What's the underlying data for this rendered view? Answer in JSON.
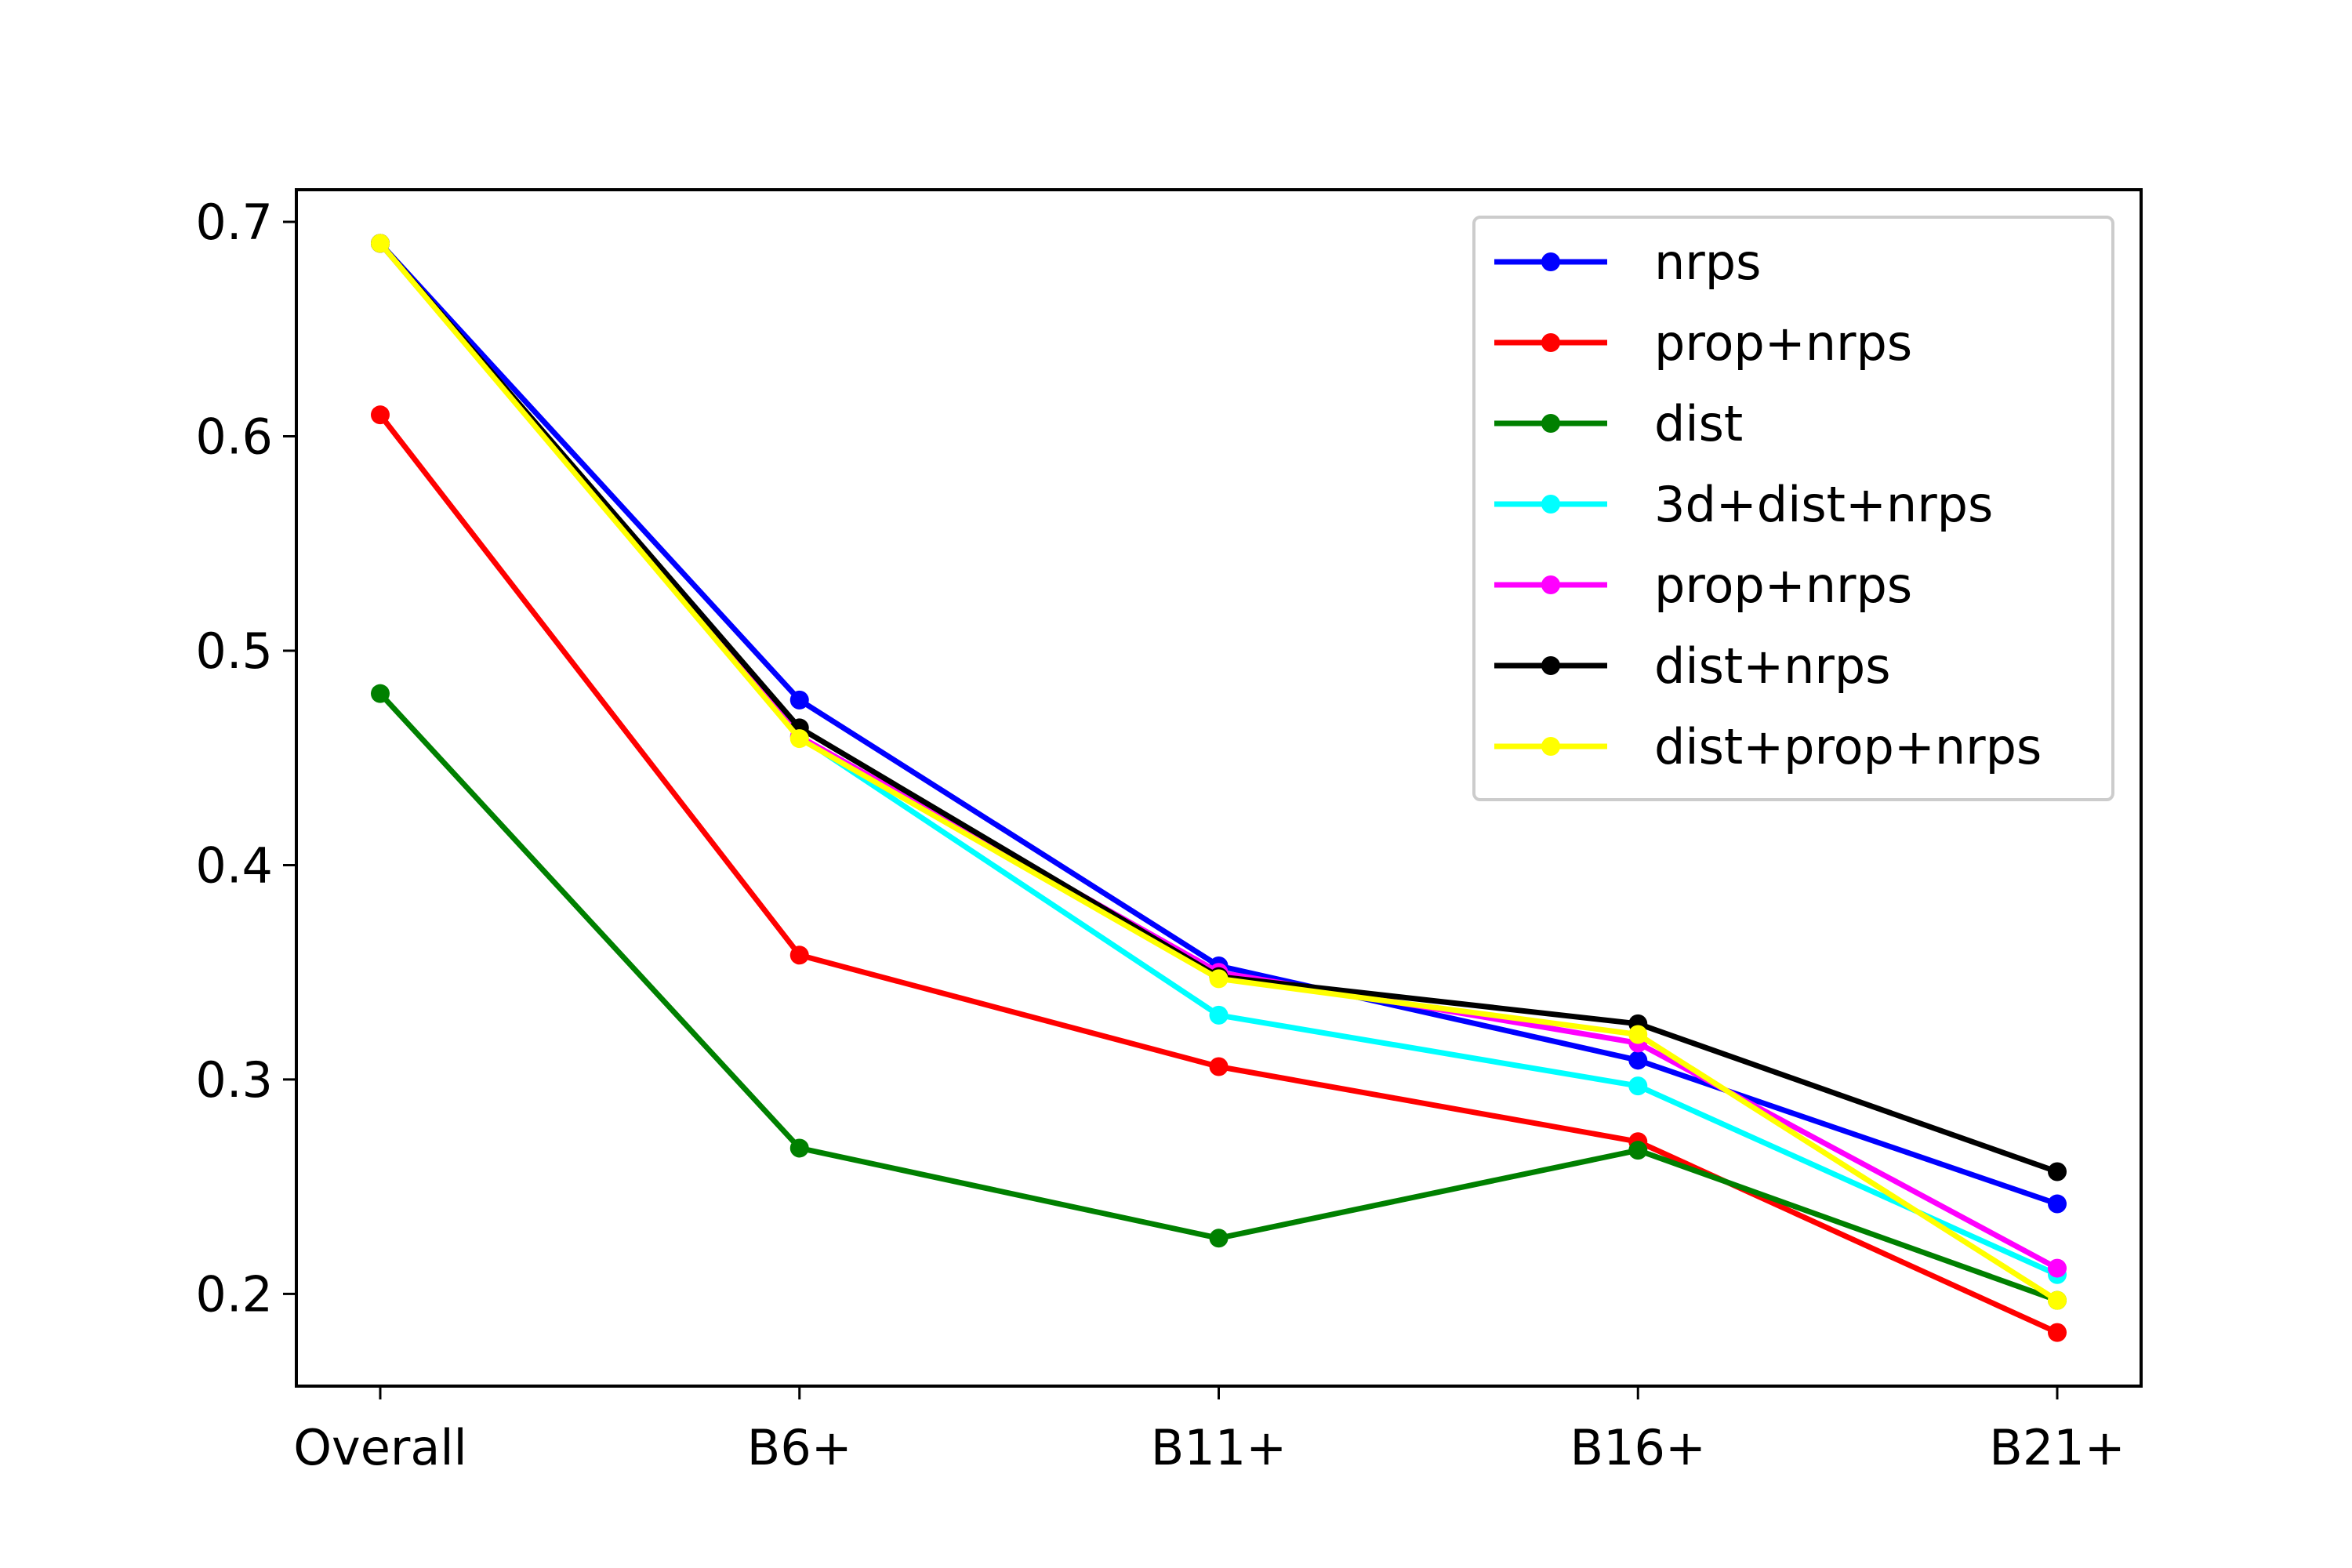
{
  "chart_data": {
    "type": "line",
    "categories": [
      "Overall",
      "B6+",
      "B11+",
      "B16+",
      "B21+"
    ],
    "ylim": [
      0.157,
      0.715
    ],
    "yticks": [
      0.2,
      0.3,
      0.4,
      0.5,
      0.6,
      0.7
    ],
    "ytick_labels": [
      "0.2",
      "0.3",
      "0.4",
      "0.5",
      "0.6",
      "0.7"
    ],
    "grid": false,
    "legend_position": "top-right",
    "series": [
      {
        "name": "nrps",
        "color": "#0000ff",
        "values": [
          0.69,
          0.477,
          0.353,
          0.309,
          0.242
        ]
      },
      {
        "name": "prop+nrps",
        "color": "#ff0000",
        "values": [
          0.61,
          0.358,
          0.306,
          0.271,
          0.182
        ]
      },
      {
        "name": "dist",
        "color": "#008000",
        "values": [
          0.48,
          0.268,
          0.226,
          0.267,
          0.197
        ]
      },
      {
        "name": "3d+dist+nrps",
        "color": "#00ffff",
        "values": [
          0.69,
          0.46,
          0.33,
          0.297,
          0.209
        ]
      },
      {
        "name": "prop+nrps",
        "color": "#ff00ff",
        "values": [
          0.69,
          0.46,
          0.35,
          0.317,
          0.212
        ]
      },
      {
        "name": "dist+nrps",
        "color": "#000000",
        "values": [
          0.69,
          0.464,
          0.348,
          0.326,
          0.257
        ]
      },
      {
        "name": "dist+prop+nrps",
        "color": "#ffff00",
        "values": [
          0.69,
          0.459,
          0.347,
          0.321,
          0.197
        ]
      }
    ]
  }
}
